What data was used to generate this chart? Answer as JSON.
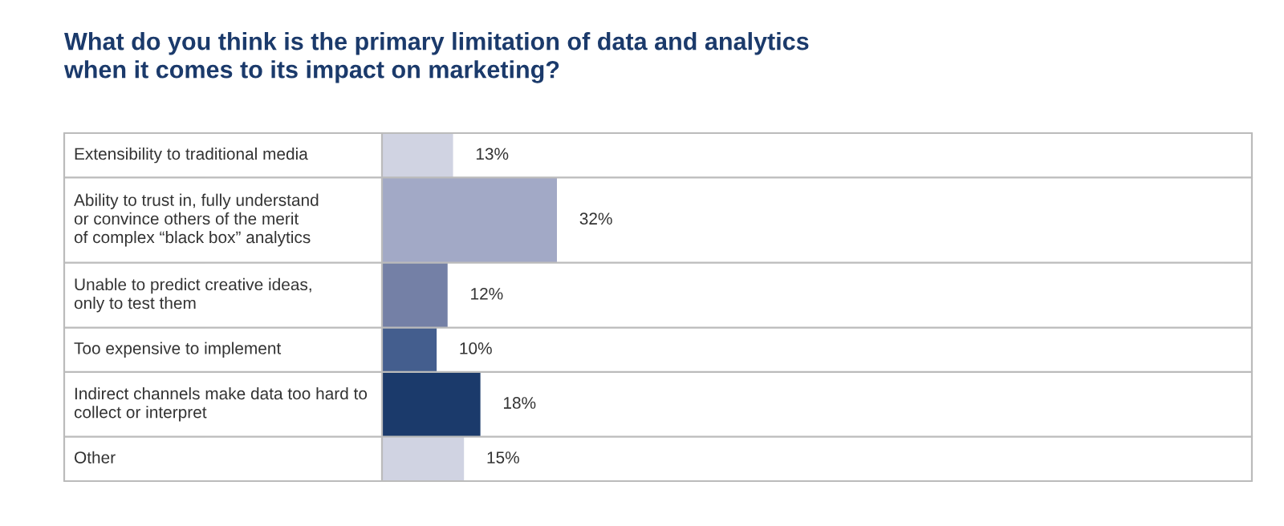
{
  "chart_data": {
    "type": "bar",
    "orientation": "horizontal",
    "title": "What do you think is the primary limitation of data and analytics\nwhen it comes to its impact on marketing?",
    "categories": [
      "Extensibility to traditional media",
      "Ability to trust in, fully understand\nor convince others of the merit\nof complex “black box” analytics",
      "Unable to predict creative ideas,\nonly to test them",
      "Too expensive to implement",
      "Indirect channels make data too hard to\ncollect or interpret",
      "Other"
    ],
    "values": [
      13,
      32,
      12,
      10,
      18,
      15
    ],
    "value_labels": [
      "13%",
      "32%",
      "12%",
      "10%",
      "18%",
      "15%"
    ],
    "colors": [
      "#d0d3e2",
      "#a2a9c6",
      "#7480a6",
      "#445e8e",
      "#1b3a6b",
      "#d0d3e2"
    ]
  }
}
